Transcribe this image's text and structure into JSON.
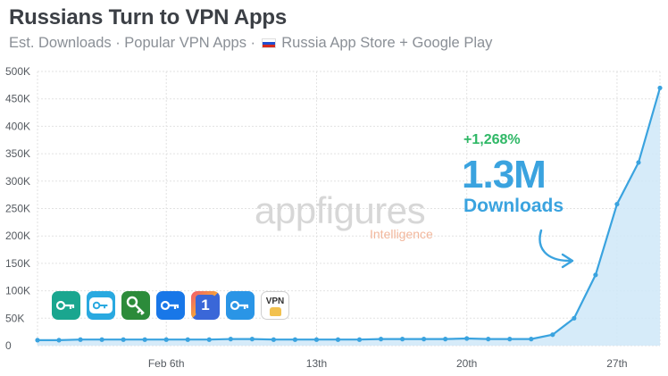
{
  "header": {
    "title": "Russians Turn to VPN Apps",
    "subtitle_pre": "Est. Downloads · Popular VPN Apps ·",
    "subtitle_post": "Russia App Store + Google Play"
  },
  "watermark": {
    "brand": "appfigures",
    "product": "Intelligence"
  },
  "annotation": {
    "change": "+1,268%",
    "total": "1.3M",
    "label": "Downloads"
  },
  "apps": [
    {
      "icon": "key-app-icon-teal",
      "color": "#1aa68f"
    },
    {
      "icon": "key-app-icon-cyan",
      "color": "#29a9e0"
    },
    {
      "icon": "key-app-icon-green",
      "color": "#2c8b3a"
    },
    {
      "icon": "key-app-icon-blue",
      "color": "#1877e8"
    },
    {
      "icon": "shield-1-app-icon",
      "color": "#3a67d8",
      "text": "1"
    },
    {
      "icon": "key-app-icon-lightblue",
      "color": "#2a95e6"
    },
    {
      "icon": "vpn-app-icon",
      "color": "#ffffff",
      "text": "VPN"
    }
  ],
  "chart_data": {
    "type": "area",
    "title": "Russians Turn to VPN Apps",
    "xlabel": "",
    "ylabel": "",
    "ylim": [
      0,
      500000
    ],
    "yticks": [
      0,
      50000,
      100000,
      150000,
      200000,
      250000,
      300000,
      350000,
      400000,
      450000,
      500000
    ],
    "ytick_labels": [
      "0",
      "50K",
      "100K",
      "150K",
      "200K",
      "250K",
      "300K",
      "350K",
      "400K",
      "450K",
      "500K"
    ],
    "x_tick_labels": [
      {
        "index": 6,
        "label": "Feb 6th"
      },
      {
        "index": 13,
        "label": "13th"
      },
      {
        "index": 20,
        "label": "20th"
      },
      {
        "index": 27,
        "label": "27th"
      }
    ],
    "grid": true,
    "color": "#3aa3df",
    "series": [
      {
        "values": [
          10000,
          10000,
          11000,
          11000,
          11000,
          11000,
          11000,
          11000,
          11000,
          12000,
          12000,
          11000,
          11000,
          11000,
          11000,
          11000,
          12000,
          12000,
          12000,
          12000,
          13000,
          12000,
          12000,
          12000,
          20000,
          50000,
          129000,
          258000,
          334000,
          470000
        ]
      }
    ]
  }
}
